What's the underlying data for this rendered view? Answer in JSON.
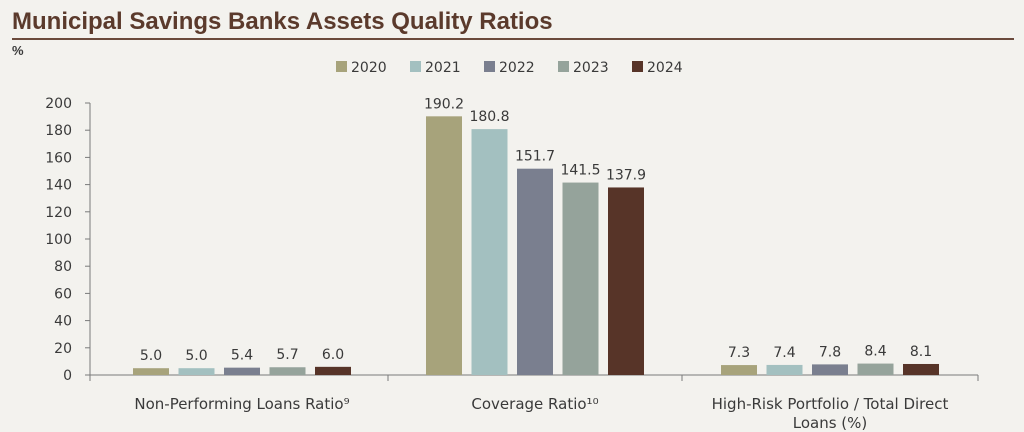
{
  "chart_data": {
    "type": "bar",
    "title": "Municipal Savings Banks Assets Quality Ratios",
    "unit": "%",
    "categories": [
      [
        "Non-Performing Loans Ratio⁹"
      ],
      [
        "Coverage Ratio¹⁰"
      ],
      [
        "High-Risk Portfolio / Total Direct",
        "Loans (%)"
      ]
    ],
    "series": [
      {
        "name": "2020",
        "color": "#a7a37b",
        "values": [
          5.0,
          190.2,
          7.3
        ]
      },
      {
        "name": "2021",
        "color": "#a3c0c0",
        "values": [
          5.0,
          180.8,
          7.4
        ]
      },
      {
        "name": "2022",
        "color": "#7a7f8f",
        "values": [
          5.4,
          151.7,
          7.8
        ]
      },
      {
        "name": "2023",
        "color": "#95a39b",
        "values": [
          5.7,
          141.5,
          8.4
        ]
      },
      {
        "name": "2024",
        "color": "#573428",
        "values": [
          6.0,
          137.9,
          8.1
        ]
      }
    ],
    "data_labels": [
      [
        "5.0",
        "190.2",
        "7.3"
      ],
      [
        "5.0",
        "180.8",
        "7.4"
      ],
      [
        "5.4",
        "151.7",
        "7.8"
      ],
      [
        "5.7",
        "141.5",
        "8.4"
      ],
      [
        "6.0",
        "137.9",
        "8.1"
      ]
    ],
    "ylim": [
      0,
      200
    ],
    "yticks": [
      0,
      20,
      40,
      60,
      80,
      100,
      120,
      140,
      160,
      180,
      200
    ],
    "grid": false,
    "legend_position": "top"
  }
}
